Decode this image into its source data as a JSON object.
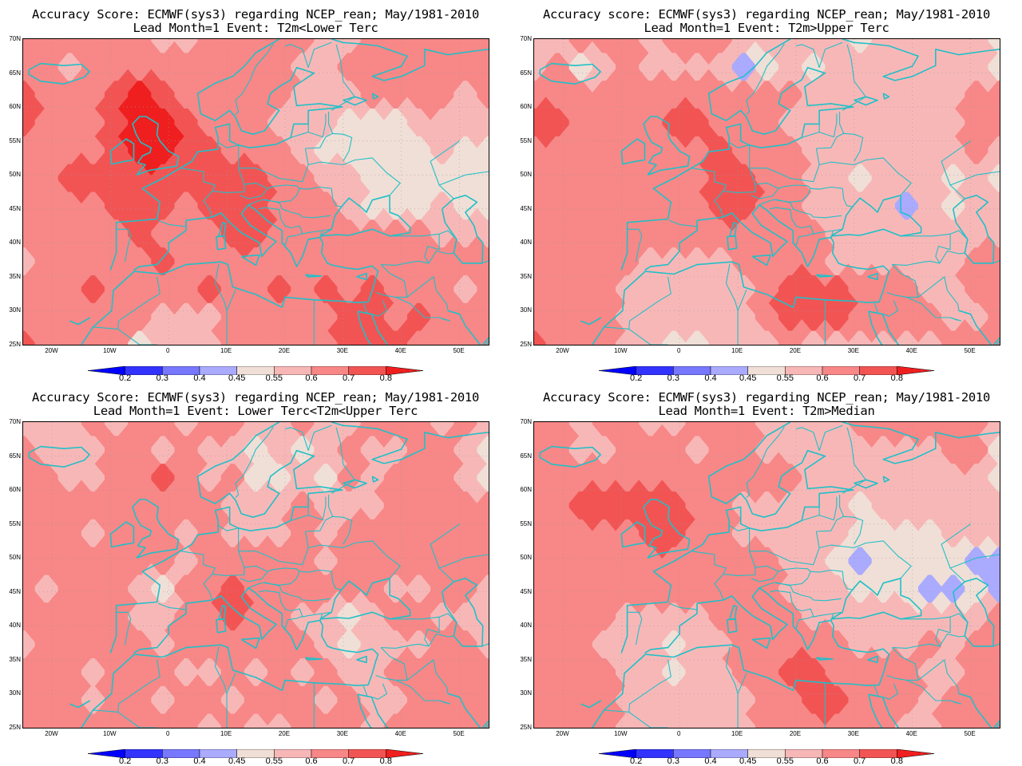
{
  "colors": {
    "levels": [
      "#0000ff",
      "#3333ff",
      "#7777ff",
      "#aaaaff",
      "#f0dfd6",
      "#f8b7b7",
      "#f88787",
      "#f25454",
      "#ef1f1f"
    ],
    "coast": "#20c0c8",
    "grid": "#999999"
  },
  "axes": {
    "lat_labels": [
      "70N",
      "65N",
      "60N",
      "55N",
      "50N",
      "45N",
      "40N",
      "35N",
      "30N",
      "25N"
    ],
    "lon_labels": [
      "20W",
      "10W",
      "0",
      "10E",
      "20E",
      "30E",
      "40E",
      "50E"
    ],
    "lon_range": [
      -25,
      55
    ],
    "lat_range": [
      25,
      70
    ]
  },
  "colorbar": {
    "labels": [
      "0.2",
      "0.3",
      "0.4",
      "0.45",
      "0.55",
      "0.6",
      "0.7",
      "0.8"
    ]
  },
  "panels": [
    {
      "title1": "Accuracy Score: ECMWF(sys3) regarding NCEP_rean; May/1981-2010",
      "title2": "Lead Month=1 Event: T2m<Lower Terc",
      "grid": [
        [
          6,
          6,
          6,
          6,
          6,
          6,
          5,
          5,
          6,
          6,
          6,
          6,
          6,
          5,
          5,
          6,
          6,
          6,
          6,
          6,
          6
        ],
        [
          6,
          6,
          5,
          6,
          6,
          6,
          6,
          6,
          6,
          6,
          6,
          6,
          5,
          5,
          6,
          6,
          6,
          6,
          6,
          6,
          6
        ],
        [
          7,
          6,
          6,
          6,
          7,
          8,
          7,
          6,
          6,
          6,
          6,
          6,
          5,
          5,
          5,
          6,
          6,
          6,
          6,
          5,
          6
        ],
        [
          7,
          6,
          6,
          6,
          7,
          8,
          8,
          7,
          6,
          6,
          6,
          5,
          5,
          5,
          4,
          4,
          4,
          5,
          5,
          5,
          5
        ],
        [
          6,
          6,
          6,
          6,
          7,
          8,
          8,
          7,
          7,
          6,
          6,
          6,
          5,
          4,
          4,
          4,
          4,
          4,
          5,
          4,
          4
        ],
        [
          6,
          6,
          7,
          7,
          7,
          7,
          7,
          7,
          7,
          7,
          7,
          6,
          6,
          5,
          5,
          4,
          4,
          4,
          4,
          4,
          4
        ],
        [
          6,
          6,
          6,
          6,
          7,
          7,
          7,
          6,
          7,
          7,
          7,
          6,
          6,
          6,
          5,
          4,
          4,
          4,
          5,
          4,
          4
        ],
        [
          6,
          6,
          6,
          6,
          6,
          7,
          6,
          6,
          6,
          7,
          7,
          6,
          6,
          6,
          6,
          6,
          6,
          6,
          5,
          5,
          5
        ],
        [
          5,
          6,
          6,
          6,
          6,
          6,
          7,
          6,
          6,
          6,
          6,
          6,
          6,
          6,
          6,
          6,
          6,
          6,
          6,
          6,
          6
        ],
        [
          6,
          6,
          6,
          7,
          6,
          6,
          6,
          6,
          7,
          6,
          6,
          7,
          6,
          7,
          6,
          7,
          6,
          6,
          6,
          5,
          6
        ],
        [
          6,
          6,
          6,
          6,
          6,
          6,
          5,
          5,
          5,
          6,
          6,
          6,
          6,
          6,
          7,
          7,
          6,
          7,
          6,
          6,
          6
        ],
        [
          7,
          6,
          6,
          6,
          6,
          4,
          5,
          5,
          5,
          6,
          6,
          6,
          6,
          6,
          7,
          7,
          7,
          6,
          6,
          6,
          6
        ]
      ]
    },
    {
      "title1": "Accuracy score: ECMWF(sys3) regarding NCEP_rean; May/1981-2010",
      "title2": "Lead Month=1 Event: T2m>Upper Terc",
      "grid": [
        [
          5,
          5,
          6,
          6,
          6,
          5,
          6,
          6,
          6,
          5,
          5,
          5,
          5,
          5,
          4,
          5,
          5,
          5,
          5,
          5,
          4
        ],
        [
          5,
          6,
          4,
          5,
          6,
          5,
          5,
          5,
          5,
          3,
          4,
          5,
          4,
          5,
          5,
          5,
          5,
          5,
          5,
          5,
          4
        ],
        [
          6,
          6,
          6,
          6,
          6,
          6,
          6,
          6,
          6,
          6,
          6,
          6,
          5,
          5,
          5,
          5,
          5,
          5,
          5,
          6,
          6
        ],
        [
          7,
          7,
          6,
          6,
          6,
          6,
          7,
          7,
          6,
          6,
          6,
          5,
          5,
          5,
          5,
          5,
          5,
          5,
          5,
          6,
          6
        ],
        [
          6,
          6,
          6,
          6,
          6,
          6,
          6,
          6,
          7,
          6,
          6,
          6,
          5,
          5,
          5,
          5,
          5,
          5,
          5,
          6,
          5
        ],
        [
          6,
          6,
          6,
          6,
          6,
          6,
          6,
          6,
          7,
          7,
          6,
          6,
          5,
          5,
          4,
          5,
          5,
          5,
          4,
          5,
          4
        ],
        [
          6,
          6,
          6,
          6,
          6,
          6,
          6,
          6,
          7,
          7,
          6,
          6,
          5,
          5,
          5,
          5,
          3,
          5,
          4,
          5,
          5
        ],
        [
          6,
          6,
          6,
          6,
          6,
          6,
          6,
          6,
          6,
          6,
          6,
          6,
          6,
          5,
          5,
          5,
          5,
          5,
          5,
          5,
          5
        ],
        [
          6,
          6,
          6,
          6,
          6,
          5,
          5,
          5,
          5,
          6,
          6,
          6,
          6,
          5,
          5,
          5,
          5,
          5,
          5,
          6,
          6
        ],
        [
          6,
          6,
          6,
          6,
          5,
          5,
          5,
          5,
          5,
          5,
          6,
          7,
          7,
          7,
          6,
          6,
          6,
          5,
          5,
          6,
          6
        ],
        [
          6,
          6,
          6,
          6,
          5,
          5,
          5,
          5,
          5,
          5,
          6,
          7,
          7,
          7,
          6,
          6,
          6,
          6,
          5,
          5,
          6
        ],
        [
          7,
          6,
          6,
          6,
          5,
          5,
          4,
          4,
          5,
          5,
          5,
          6,
          5,
          5,
          5,
          5,
          5,
          5,
          6,
          6,
          6
        ]
      ]
    },
    {
      "title1": "Accuracy Score: ECMWF(sys3) regarding NCEP_rean; May/1981-2010",
      "title2": "Lead Month=1 Event: Lower Terc<T2m<Upper Terc",
      "grid": [
        [
          5,
          5,
          5,
          6,
          5,
          6,
          6,
          5,
          6,
          6,
          5,
          5,
          6,
          5,
          5,
          6,
          6,
          6,
          5,
          6,
          5
        ],
        [
          6,
          5,
          5,
          5,
          6,
          6,
          5,
          6,
          5,
          5,
          4,
          5,
          4,
          5,
          6,
          5,
          5,
          6,
          6,
          5,
          4
        ],
        [
          6,
          6,
          5,
          5,
          6,
          6,
          7,
          6,
          5,
          6,
          4,
          4,
          5,
          4,
          6,
          5,
          6,
          6,
          6,
          5,
          4
        ],
        [
          6,
          6,
          6,
          6,
          6,
          6,
          6,
          6,
          6,
          5,
          5,
          5,
          6,
          5,
          5,
          5,
          6,
          6,
          6,
          6,
          6
        ],
        [
          6,
          6,
          6,
          5,
          6,
          6,
          6,
          5,
          6,
          5,
          5,
          5,
          6,
          5,
          6,
          6,
          6,
          6,
          6,
          6,
          6
        ],
        [
          6,
          6,
          6,
          6,
          6,
          6,
          6,
          5,
          6,
          6,
          6,
          6,
          6,
          5,
          6,
          6,
          6,
          6,
          6,
          6,
          6
        ],
        [
          6,
          5,
          6,
          6,
          6,
          5,
          4,
          6,
          6,
          7,
          6,
          6,
          6,
          6,
          6,
          6,
          5,
          5,
          6,
          6,
          5
        ],
        [
          6,
          6,
          6,
          6,
          6,
          5,
          5,
          6,
          6,
          7,
          6,
          6,
          5,
          5,
          4,
          5,
          6,
          6,
          5,
          5,
          5
        ],
        [
          5,
          6,
          6,
          6,
          6,
          6,
          5,
          6,
          6,
          6,
          6,
          6,
          6,
          5,
          4,
          5,
          5,
          5,
          6,
          6,
          5
        ],
        [
          6,
          6,
          6,
          5,
          6,
          6,
          6,
          5,
          5,
          6,
          5,
          6,
          5,
          6,
          5,
          5,
          6,
          6,
          6,
          6,
          6
        ],
        [
          6,
          6,
          6,
          5,
          6,
          6,
          5,
          6,
          6,
          5,
          6,
          6,
          6,
          5,
          6,
          5,
          5,
          6,
          6,
          6,
          6
        ],
        [
          6,
          6,
          6,
          6,
          6,
          6,
          6,
          6,
          5,
          6,
          5,
          5,
          6,
          6,
          6,
          5,
          6,
          6,
          6,
          6,
          6
        ]
      ]
    },
    {
      "title1": "Accuracy Score: ECMWF(sys3) regarding NCEP_rean; May/1981-2010",
      "title2": "Lead Month=1 Event: T2m>Median",
      "grid": [
        [
          6,
          6,
          5,
          6,
          6,
          5,
          5,
          6,
          6,
          6,
          5,
          5,
          5,
          5,
          6,
          6,
          6,
          6,
          6,
          6,
          5
        ],
        [
          6,
          6,
          5,
          5,
          6,
          6,
          6,
          5,
          6,
          6,
          5,
          5,
          5,
          5,
          5,
          5,
          5,
          5,
          6,
          6,
          4
        ],
        [
          6,
          6,
          6,
          6,
          6,
          6,
          6,
          6,
          6,
          6,
          6,
          6,
          5,
          5,
          5,
          5,
          5,
          5,
          5,
          5,
          4
        ],
        [
          6,
          6,
          7,
          7,
          7,
          7,
          7,
          6,
          6,
          5,
          5,
          5,
          5,
          5,
          4,
          5,
          5,
          5,
          5,
          5,
          5
        ],
        [
          6,
          6,
          6,
          6,
          6,
          7,
          7,
          6,
          6,
          5,
          5,
          5,
          5,
          5,
          4,
          4,
          4,
          4,
          5,
          5,
          5
        ],
        [
          6,
          6,
          6,
          6,
          6,
          6,
          6,
          6,
          6,
          6,
          6,
          5,
          5,
          4,
          3,
          4,
          4,
          4,
          4,
          3,
          3
        ],
        [
          6,
          6,
          6,
          6,
          6,
          6,
          6,
          6,
          6,
          6,
          6,
          5,
          5,
          5,
          4,
          4,
          4,
          3,
          3,
          4,
          3
        ],
        [
          6,
          6,
          6,
          6,
          5,
          5,
          5,
          5,
          6,
          6,
          6,
          6,
          5,
          5,
          5,
          5,
          5,
          5,
          5,
          5,
          6
        ],
        [
          6,
          6,
          6,
          5,
          5,
          5,
          4,
          5,
          5,
          6,
          6,
          6,
          6,
          6,
          5,
          5,
          5,
          6,
          5,
          6,
          6
        ],
        [
          6,
          6,
          6,
          6,
          5,
          5,
          4,
          5,
          5,
          6,
          6,
          7,
          7,
          6,
          6,
          6,
          6,
          5,
          5,
          6,
          6
        ],
        [
          6,
          6,
          6,
          6,
          5,
          5,
          5,
          5,
          5,
          5,
          6,
          6,
          7,
          7,
          6,
          6,
          6,
          5,
          6,
          6,
          6
        ],
        [
          6,
          6,
          6,
          6,
          5,
          5,
          5,
          5,
          5,
          5,
          6,
          6,
          6,
          6,
          6,
          6,
          5,
          5,
          6,
          6,
          6
        ]
      ]
    }
  ]
}
